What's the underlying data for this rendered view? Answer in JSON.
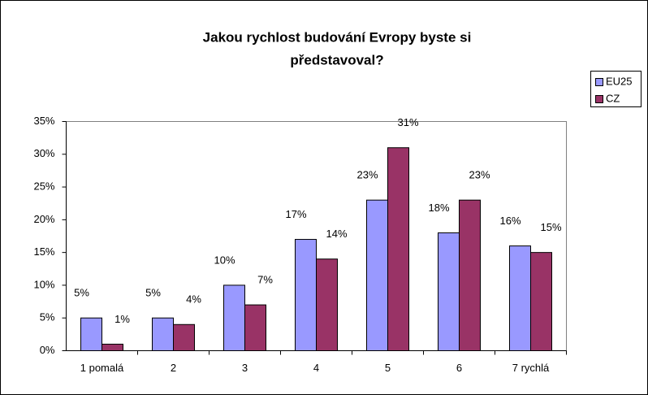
{
  "chart_data": {
    "type": "bar",
    "title": [
      "Jakou rychlost budování Evropy byste si",
      "představoval?"
    ],
    "categories": [
      "1 pomalá",
      "2",
      "3",
      "4",
      "5",
      "6",
      "7 rychlá"
    ],
    "series": [
      {
        "name": "EU25",
        "color": "#9999ff",
        "values": [
          5,
          5,
          10,
          17,
          23,
          18,
          16
        ],
        "value_labels": [
          "5%",
          "5%",
          "10%",
          "17%",
          "23%",
          "18%",
          "16%"
        ]
      },
      {
        "name": "CZ",
        "color": "#993366",
        "values": [
          1,
          4,
          7,
          14,
          31,
          23,
          15
        ],
        "value_labels": [
          "1%",
          "4%",
          "7%",
          "14%",
          "31%",
          "23%",
          "15%"
        ]
      }
    ],
    "ylim": [
      0,
      35
    ],
    "yticks": [
      {
        "value": 0,
        "label": "0%"
      },
      {
        "value": 5,
        "label": "5%"
      },
      {
        "value": 10,
        "label": "10%"
      },
      {
        "value": 15,
        "label": "15%"
      },
      {
        "value": 20,
        "label": "20%"
      },
      {
        "value": 25,
        "label": "25%"
      },
      {
        "value": 30,
        "label": "30%"
      },
      {
        "value": 35,
        "label": "35%"
      }
    ],
    "legend": "right"
  }
}
